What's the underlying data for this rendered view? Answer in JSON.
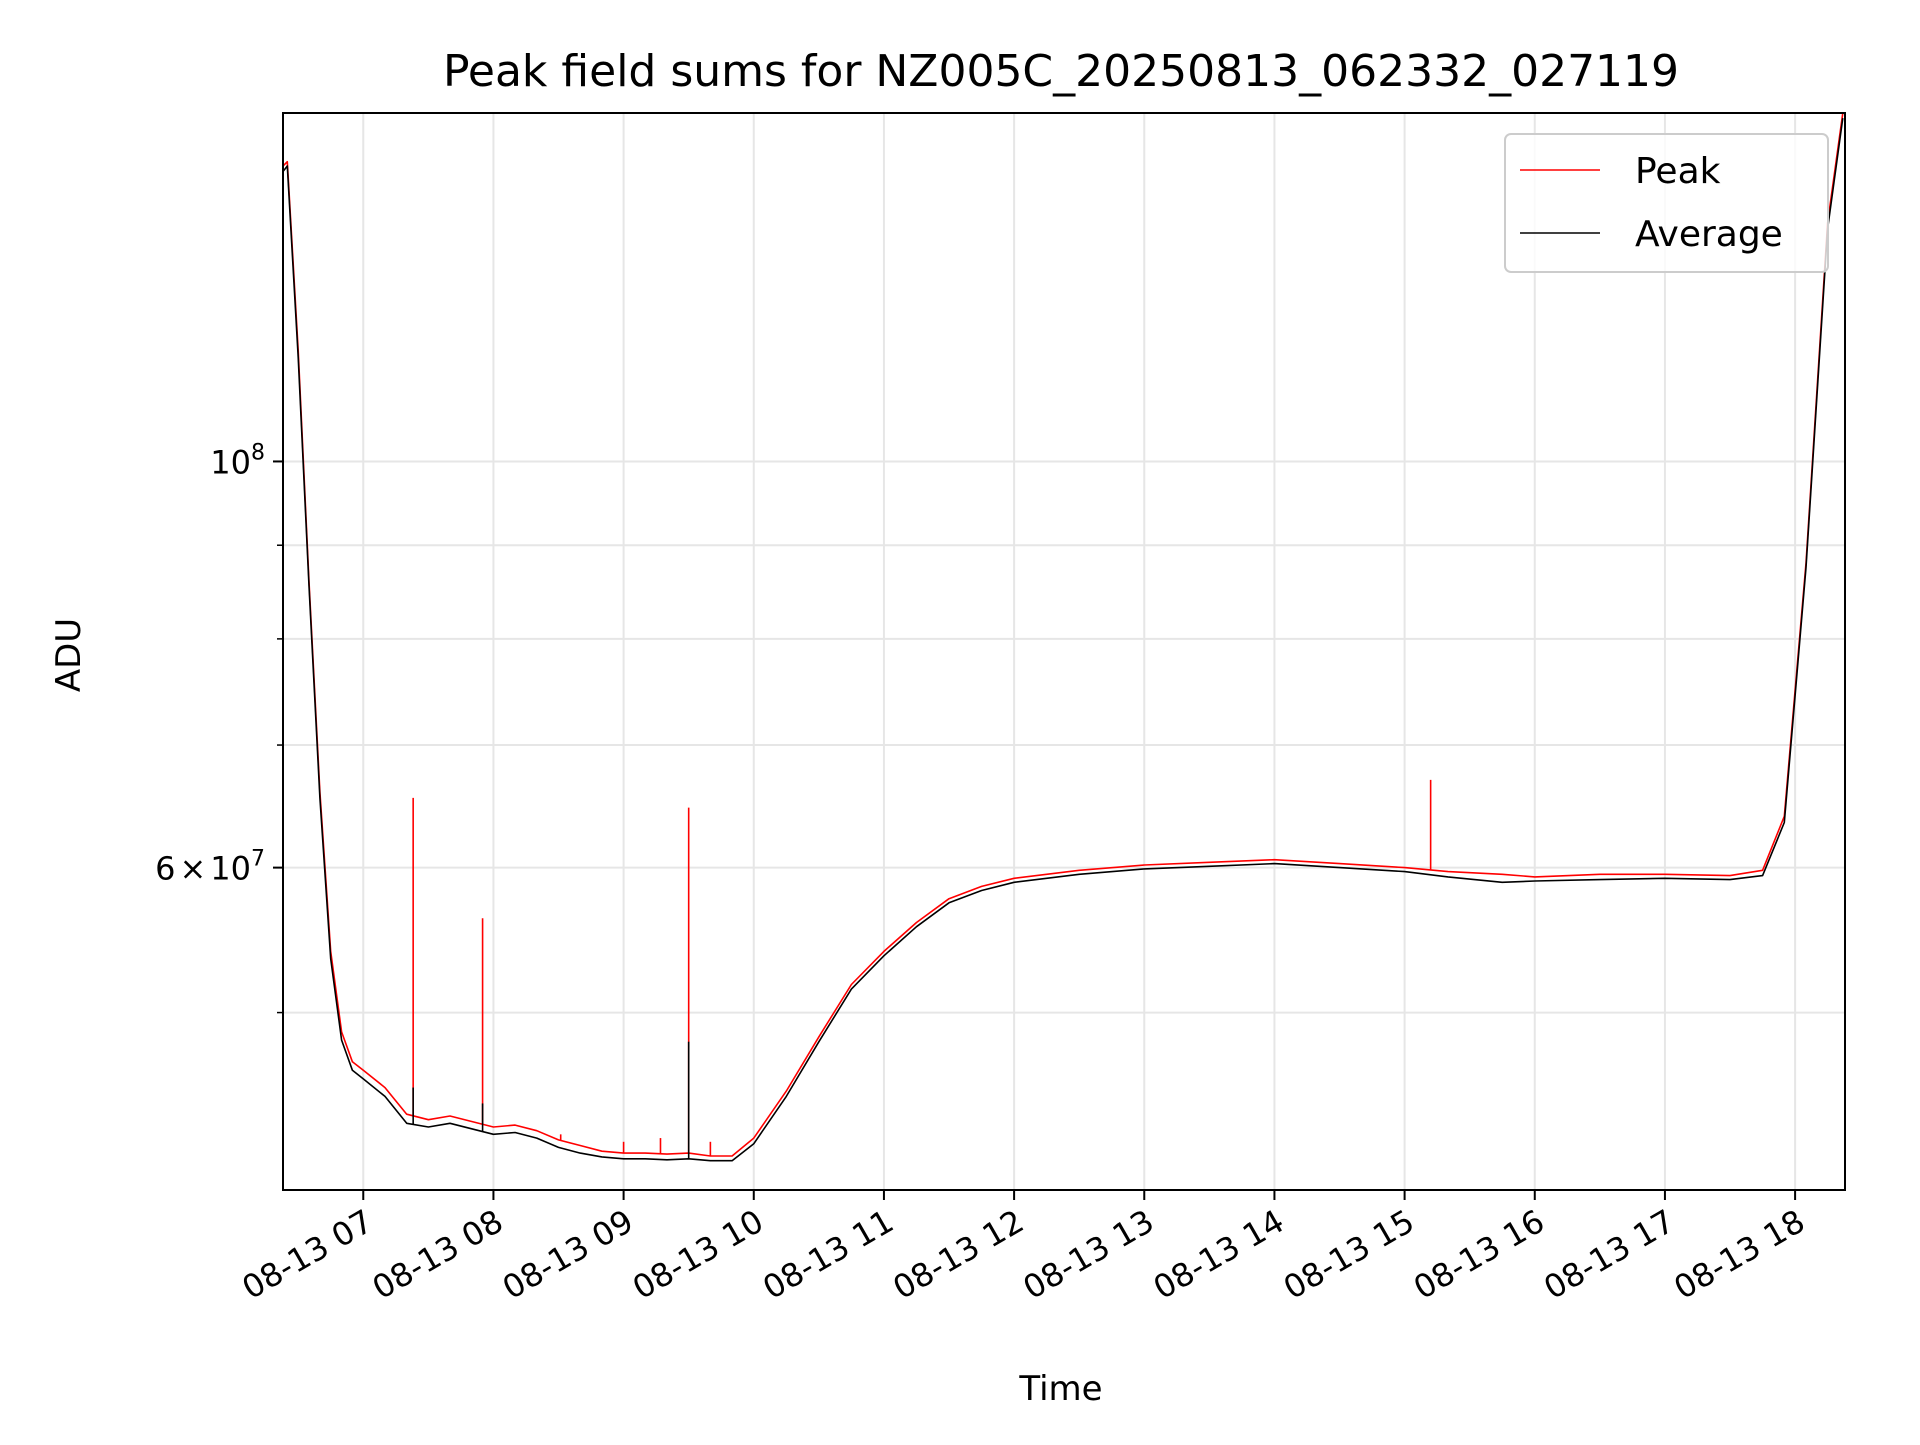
{
  "chart_data": {
    "type": "line",
    "title": "Peak field sums for NZ005C_20250813_062332_027119",
    "xlabel": "Time",
    "ylabel": "ADU",
    "x_scale": "time",
    "y_scale": "log",
    "xlim": [
      "2025-08-13 06:23",
      "2025-08-13 18:23"
    ],
    "ylim": [
      40000000,
      155000000
    ],
    "grid": true,
    "legend_position": "top-right",
    "x_ticks": [
      "08-13 07",
      "08-13 08",
      "08-13 09",
      "08-13 10",
      "08-13 11",
      "08-13 12",
      "08-13 13",
      "08-13 14",
      "08-13 15",
      "08-13 16",
      "08-13 17",
      "08-13 18"
    ],
    "y_ticks": [
      {
        "value": 100000000,
        "base": "10",
        "exp": "8"
      },
      {
        "value": 60000000,
        "mant": "6",
        "times": "×",
        "base": "10",
        "exp": "7"
      }
    ],
    "y_minor_ticks": [
      50000000,
      70000000,
      80000000,
      90000000
    ],
    "series": [
      {
        "name": "Peak",
        "color": "#ff0000",
        "x": [
          "08-13 06:23",
          "08-13 06:25",
          "08-13 06:30",
          "08-13 06:35",
          "08-13 06:40",
          "08-13 06:45",
          "08-13 06:50",
          "08-13 06:55",
          "08-13 07:00",
          "08-13 07:10",
          "08-13 07:20",
          "08-13 07:30",
          "08-13 07:40",
          "08-13 07:50",
          "08-13 08:00",
          "08-13 08:10",
          "08-13 08:20",
          "08-13 08:30",
          "08-13 08:40",
          "08-13 08:50",
          "08-13 09:00",
          "08-13 09:10",
          "08-13 09:20",
          "08-13 09:30",
          "08-13 09:40",
          "08-13 09:50",
          "08-13 10:00",
          "08-13 10:15",
          "08-13 10:30",
          "08-13 10:45",
          "08-13 11:00",
          "08-13 11:15",
          "08-13 11:30",
          "08-13 11:45",
          "08-13 12:00",
          "08-13 12:30",
          "08-13 13:00",
          "08-13 13:30",
          "08-13 14:00",
          "08-13 14:30",
          "08-13 15:00",
          "08-13 15:20",
          "08-13 15:45",
          "08-13 16:00",
          "08-13 16:30",
          "08-13 17:00",
          "08-13 17:30",
          "08-13 17:45",
          "08-13 17:55",
          "08-13 18:05",
          "08-13 18:15",
          "08-13 18:22"
        ],
        "y": [
          145000000,
          145800000,
          115000000,
          86000000,
          66000000,
          54000000,
          48800000,
          47000000,
          46500000,
          45500000,
          44000000,
          43700000,
          43900000,
          43600000,
          43300000,
          43400000,
          43100000,
          42600000,
          42300000,
          42000000,
          41900000,
          41900000,
          41850000,
          41900000,
          41750000,
          41750000,
          42700000,
          45300000,
          48500000,
          51800000,
          54000000,
          56000000,
          57700000,
          58600000,
          59200000,
          59800000,
          60200000,
          60400000,
          60600000,
          60300000,
          60000000,
          59700000,
          59500000,
          59300000,
          59500000,
          59500000,
          59400000,
          59800000,
          64000000,
          88000000,
          135000000,
          155000000
        ],
        "spikes": [
          {
            "x": "08-13 07:23",
            "y": 65500000
          },
          {
            "x": "08-13 07:55",
            "y": 56300000
          },
          {
            "x": "08-13 08:31",
            "y": 42900000
          },
          {
            "x": "08-13 09:00",
            "y": 42500000
          },
          {
            "x": "08-13 09:17",
            "y": 42700000
          },
          {
            "x": "08-13 09:30",
            "y": 64700000
          },
          {
            "x": "08-13 09:40",
            "y": 42500000
          },
          {
            "x": "08-13 15:12",
            "y": 67000000
          }
        ]
      },
      {
        "name": "Average",
        "color": "#000000",
        "x": [
          "08-13 06:23",
          "08-13 06:25",
          "08-13 06:30",
          "08-13 06:35",
          "08-13 06:40",
          "08-13 06:45",
          "08-13 06:50",
          "08-13 06:55",
          "08-13 07:00",
          "08-13 07:10",
          "08-13 07:20",
          "08-13 07:30",
          "08-13 07:40",
          "08-13 07:50",
          "08-13 08:00",
          "08-13 08:10",
          "08-13 08:20",
          "08-13 08:30",
          "08-13 08:40",
          "08-13 08:50",
          "08-13 09:00",
          "08-13 09:10",
          "08-13 09:20",
          "08-13 09:30",
          "08-13 09:40",
          "08-13 09:50",
          "08-13 10:00",
          "08-13 10:15",
          "08-13 10:30",
          "08-13 10:45",
          "08-13 11:00",
          "08-13 11:15",
          "08-13 11:30",
          "08-13 11:45",
          "08-13 12:00",
          "08-13 12:30",
          "08-13 13:00",
          "08-13 13:30",
          "08-13 14:00",
          "08-13 14:30",
          "08-13 15:00",
          "08-13 15:20",
          "08-13 15:45",
          "08-13 16:00",
          "08-13 16:30",
          "08-13 17:00",
          "08-13 17:30",
          "08-13 17:45",
          "08-13 17:55",
          "08-13 18:05",
          "08-13 18:15",
          "08-13 18:22"
        ],
        "y": [
          144000000,
          145000000,
          114000000,
          85500000,
          65500000,
          53500000,
          48300000,
          46500000,
          46000000,
          45000000,
          43500000,
          43300000,
          43500000,
          43200000,
          42900000,
          43000000,
          42700000,
          42200000,
          41900000,
          41700000,
          41600000,
          41600000,
          41550000,
          41600000,
          41500000,
          41500000,
          42400000,
          45000000,
          48200000,
          51500000,
          53700000,
          55700000,
          57400000,
          58300000,
          58900000,
          59500000,
          59900000,
          60100000,
          60300000,
          60000000,
          59700000,
          59300000,
          58900000,
          59000000,
          59100000,
          59200000,
          59100000,
          59400000,
          63500000,
          87500000,
          134000000,
          154000000
        ],
        "spikes": [
          {
            "x": "08-13 07:23",
            "y": 45500000
          },
          {
            "x": "08-13 07:55",
            "y": 44600000
          },
          {
            "x": "08-13 09:30",
            "y": 48200000
          }
        ]
      }
    ]
  }
}
